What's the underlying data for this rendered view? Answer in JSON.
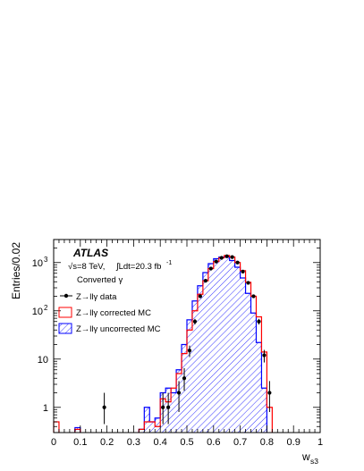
{
  "chart_data": {
    "type": "histogram",
    "xlabel": "w",
    "xlabel_sub": "s3",
    "ylabel": "Entries/0.02",
    "xlim": [
      0,
      1
    ],
    "ylim": [
      0.3,
      3000
    ],
    "yscale": "log",
    "bin_width": 0.02,
    "x_ticks": [
      "0",
      "0.1",
      "0.2",
      "0.3",
      "0.4",
      "0.5",
      "0.6",
      "0.7",
      "0.8",
      "0.9",
      "1"
    ],
    "y_ticks": [
      {
        "value": 1,
        "label": "1"
      },
      {
        "value": 10,
        "label": "10"
      },
      {
        "value": 100,
        "label": "10",
        "exp": "2"
      },
      {
        "value": 1000,
        "label": "10",
        "exp": "3"
      }
    ],
    "annotations": {
      "experiment": "ATLAS",
      "energy": "√s=8 TeV,",
      "integral": "∫Ldt=20.3 fb",
      "integral_exp": "-1",
      "category": "Converted γ"
    },
    "legend": [
      {
        "label": "Z→llγ data",
        "style": "marker",
        "color": "#000000"
      },
      {
        "label": "Z→llγ corrected MC",
        "style": "box",
        "color": "#ff0000"
      },
      {
        "label": "Z→llγ uncorrected MC",
        "style": "hatch",
        "color": "#0000ff"
      }
    ],
    "series": [
      {
        "name": "Z→llγ corrected MC",
        "color": "#ff0000",
        "bins": [
          {
            "x0": 0.0,
            "x1": 0.02,
            "y": 0.5
          },
          {
            "x0": 0.08,
            "x1": 0.1,
            "y": 0.35
          },
          {
            "x0": 0.32,
            "x1": 0.34,
            "y": 0.35
          },
          {
            "x0": 0.34,
            "x1": 0.36,
            "y": 0.5
          },
          {
            "x0": 0.36,
            "x1": 0.38,
            "y": 0.5
          },
          {
            "x0": 0.38,
            "x1": 0.4,
            "y": 0.4
          },
          {
            "x0": 0.4,
            "x1": 0.42,
            "y": 1.5
          },
          {
            "x0": 0.42,
            "x1": 0.44,
            "y": 1.3
          },
          {
            "x0": 0.44,
            "x1": 0.46,
            "y": 2.5
          },
          {
            "x0": 0.46,
            "x1": 0.48,
            "y": 5
          },
          {
            "x0": 0.48,
            "x1": 0.5,
            "y": 13
          },
          {
            "x0": 0.5,
            "x1": 0.52,
            "y": 40
          },
          {
            "x0": 0.52,
            "x1": 0.54,
            "y": 100
          },
          {
            "x0": 0.54,
            "x1": 0.56,
            "y": 220
          },
          {
            "x0": 0.56,
            "x1": 0.58,
            "y": 420
          },
          {
            "x0": 0.58,
            "x1": 0.6,
            "y": 750
          },
          {
            "x0": 0.6,
            "x1": 0.62,
            "y": 1050
          },
          {
            "x0": 0.62,
            "x1": 0.64,
            "y": 1250
          },
          {
            "x0": 0.64,
            "x1": 0.66,
            "y": 1400
          },
          {
            "x0": 0.66,
            "x1": 0.68,
            "y": 1300
          },
          {
            "x0": 0.68,
            "x1": 0.7,
            "y": 1000
          },
          {
            "x0": 0.7,
            "x1": 0.72,
            "y": 680
          },
          {
            "x0": 0.72,
            "x1": 0.74,
            "y": 390
          },
          {
            "x0": 0.74,
            "x1": 0.76,
            "y": 200
          },
          {
            "x0": 0.76,
            "x1": 0.78,
            "y": 75
          },
          {
            "x0": 0.78,
            "x1": 0.8,
            "y": 14
          },
          {
            "x0": 0.8,
            "x1": 0.82,
            "y": 1.0
          }
        ]
      },
      {
        "name": "Z→llγ uncorrected MC",
        "color": "#0000ff",
        "bins": [
          {
            "x0": 0.08,
            "x1": 0.1,
            "y": 0.38
          },
          {
            "x0": 0.32,
            "x1": 0.34,
            "y": 0.35
          },
          {
            "x0": 0.34,
            "x1": 0.36,
            "y": 1.0
          },
          {
            "x0": 0.36,
            "x1": 0.38,
            "y": 0.5
          },
          {
            "x0": 0.38,
            "x1": 0.4,
            "y": 0.6
          },
          {
            "x0": 0.4,
            "x1": 0.42,
            "y": 2.0
          },
          {
            "x0": 0.42,
            "x1": 0.44,
            "y": 2.5
          },
          {
            "x0": 0.44,
            "x1": 0.46,
            "y": 2.0
          },
          {
            "x0": 0.46,
            "x1": 0.48,
            "y": 6
          },
          {
            "x0": 0.48,
            "x1": 0.5,
            "y": 20
          },
          {
            "x0": 0.5,
            "x1": 0.52,
            "y": 65
          },
          {
            "x0": 0.52,
            "x1": 0.54,
            "y": 160
          },
          {
            "x0": 0.54,
            "x1": 0.56,
            "y": 330
          },
          {
            "x0": 0.56,
            "x1": 0.58,
            "y": 620
          },
          {
            "x0": 0.58,
            "x1": 0.6,
            "y": 950
          },
          {
            "x0": 0.6,
            "x1": 0.62,
            "y": 1200
          },
          {
            "x0": 0.62,
            "x1": 0.64,
            "y": 1300
          },
          {
            "x0": 0.64,
            "x1": 0.66,
            "y": 1300
          },
          {
            "x0": 0.66,
            "x1": 0.68,
            "y": 1100
          },
          {
            "x0": 0.68,
            "x1": 0.7,
            "y": 800
          },
          {
            "x0": 0.7,
            "x1": 0.72,
            "y": 480
          },
          {
            "x0": 0.72,
            "x1": 0.74,
            "y": 230
          },
          {
            "x0": 0.74,
            "x1": 0.76,
            "y": 90
          },
          {
            "x0": 0.76,
            "x1": 0.78,
            "y": 22
          },
          {
            "x0": 0.78,
            "x1": 0.8,
            "y": 2.5
          }
        ]
      },
      {
        "name": "Z→llγ data",
        "color": "#000000",
        "points": [
          {
            "x": 0.19,
            "y": 1,
            "err_lo": 0.45,
            "err_hi": 2.0
          },
          {
            "x": 0.41,
            "y": 1,
            "err_lo": 0.45,
            "err_hi": 2.0
          },
          {
            "x": 0.43,
            "y": 1,
            "err_lo": 0.45,
            "err_hi": 2.0
          },
          {
            "x": 0.47,
            "y": 2,
            "err_lo": 0.8,
            "err_hi": 3.5
          },
          {
            "x": 0.49,
            "y": 4,
            "err_lo": 2.2,
            "err_hi": 6.5
          },
          {
            "x": 0.51,
            "y": 15,
            "err_lo": 11,
            "err_hi": 19
          },
          {
            "x": 0.53,
            "y": 60,
            "err_lo": 52,
            "err_hi": 68
          },
          {
            "x": 0.55,
            "y": 200,
            "err_lo": 186,
            "err_hi": 214
          },
          {
            "x": 0.57,
            "y": 420,
            "err_lo": 400,
            "err_hi": 440
          },
          {
            "x": 0.59,
            "y": 750,
            "err_lo": 723,
            "err_hi": 777
          },
          {
            "x": 0.61,
            "y": 1050,
            "err_lo": 1018,
            "err_hi": 1082
          },
          {
            "x": 0.63,
            "y": 1250,
            "err_lo": 1215,
            "err_hi": 1285
          },
          {
            "x": 0.65,
            "y": 1350,
            "err_lo": 1313,
            "err_hi": 1387
          },
          {
            "x": 0.67,
            "y": 1300,
            "err_lo": 1264,
            "err_hi": 1336
          },
          {
            "x": 0.69,
            "y": 1000,
            "err_lo": 968,
            "err_hi": 1032
          },
          {
            "x": 0.71,
            "y": 650,
            "err_lo": 625,
            "err_hi": 675
          },
          {
            "x": 0.73,
            "y": 380,
            "err_lo": 360,
            "err_hi": 400
          },
          {
            "x": 0.75,
            "y": 200,
            "err_lo": 186,
            "err_hi": 214
          },
          {
            "x": 0.77,
            "y": 60,
            "err_lo": 52,
            "err_hi": 68
          },
          {
            "x": 0.79,
            "y": 12,
            "err_lo": 8.5,
            "err_hi": 15.5
          },
          {
            "x": 0.81,
            "y": 2,
            "err_lo": 0.8,
            "err_hi": 3.5
          }
        ]
      }
    ]
  }
}
